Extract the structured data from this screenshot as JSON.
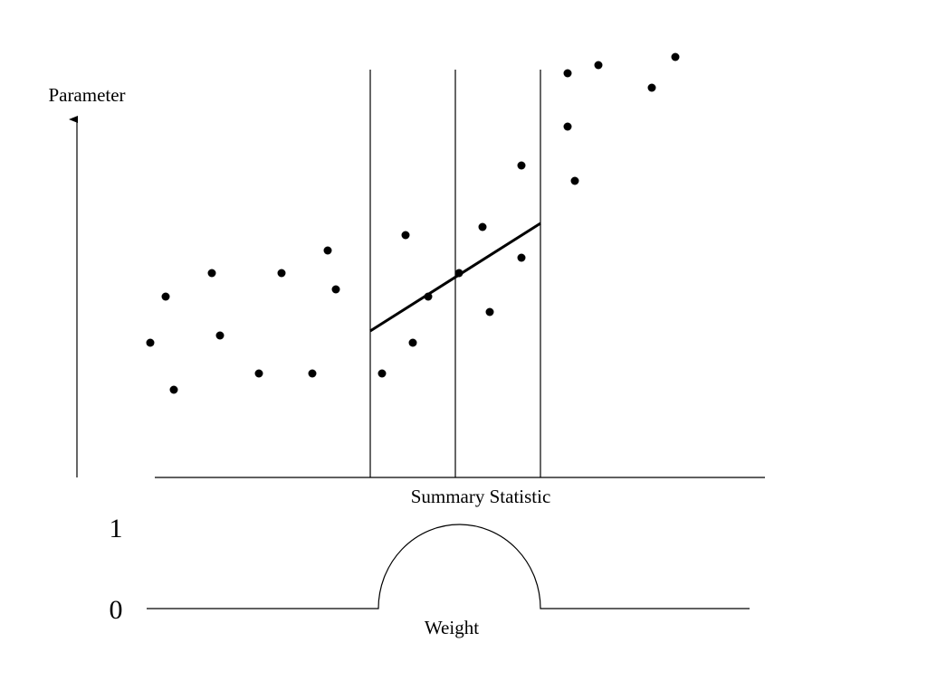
{
  "axes": {
    "y_label": "Parameter",
    "x_label": "Summary Statistic"
  },
  "weight": {
    "top_label": 1,
    "bottom_label": 0,
    "label": "Weight"
  }
}
